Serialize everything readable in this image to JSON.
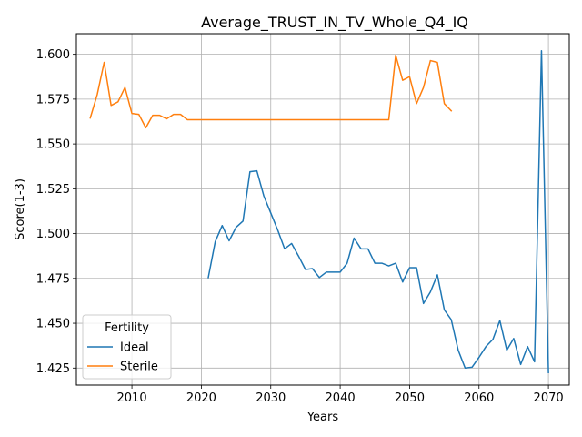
{
  "chart_data": {
    "type": "line",
    "title": "Average_TRUST_IN_TV_Whole_Q4_IQ",
    "xlabel": "Years",
    "ylabel": "Score(1-3)",
    "xlim": [
      2002,
      2073
    ],
    "ylim": [
      1.4155,
      1.6115
    ],
    "xticks": [
      2010,
      2020,
      2030,
      2040,
      2050,
      2060,
      2070
    ],
    "yticks": [
      1.425,
      1.45,
      1.475,
      1.5,
      1.525,
      1.55,
      1.575,
      1.6
    ],
    "ytick_labels": [
      "1.425",
      "1.450",
      "1.475",
      "1.500",
      "1.525",
      "1.550",
      "1.575",
      "1.600"
    ],
    "grid": true,
    "legend": {
      "title": "Fertility",
      "placement": "lower-left"
    },
    "series": [
      {
        "name": "Ideal",
        "color": "#1f77b4",
        "x": [
          2021,
          2022,
          2023,
          2024,
          2025,
          2026,
          2027,
          2028,
          2029,
          2030,
          2031,
          2032,
          2033,
          2034,
          2035,
          2036,
          2037,
          2038,
          2039,
          2040,
          2041,
          2042,
          2043,
          2044,
          2045,
          2046,
          2047,
          2048,
          2049,
          2050,
          2051,
          2052,
          2053,
          2054,
          2055,
          2056,
          2057,
          2058,
          2059,
          2060,
          2061,
          2062,
          2063,
          2064,
          2065,
          2066,
          2067,
          2068,
          2069,
          2070
        ],
        "y": [
          1.4755,
          1.4955,
          1.5045,
          1.496,
          1.5035,
          1.507,
          1.5345,
          1.535,
          1.521,
          1.5115,
          1.502,
          1.4915,
          1.4945,
          1.4875,
          1.48,
          1.4805,
          1.4755,
          1.4785,
          1.4785,
          1.4785,
          1.4835,
          1.4975,
          1.4915,
          1.4915,
          1.4835,
          1.4835,
          1.482,
          1.4835,
          1.473,
          1.481,
          1.481,
          1.461,
          1.4675,
          1.477,
          1.4575,
          1.452,
          1.435,
          1.425,
          1.4255,
          1.431,
          1.437,
          1.441,
          1.4515,
          1.435,
          1.4415,
          1.427,
          1.437,
          1.4285,
          1.602,
          1.4225
        ]
      },
      {
        "name": "Sterile",
        "color": "#ff7f0e",
        "x": [
          2004,
          2005,
          2006,
          2007,
          2008,
          2009,
          2010,
          2011,
          2012,
          2013,
          2014,
          2015,
          2016,
          2017,
          2018,
          2019,
          2020,
          2021,
          2022,
          2023,
          2024,
          2025,
          2026,
          2027,
          2028,
          2029,
          2030,
          2031,
          2032,
          2033,
          2034,
          2035,
          2036,
          2037,
          2038,
          2039,
          2040,
          2041,
          2042,
          2043,
          2044,
          2045,
          2046,
          2047,
          2048,
          2049,
          2050,
          2051,
          2052,
          2053,
          2054,
          2055,
          2056
        ],
        "y": [
          1.5645,
          1.5775,
          1.5955,
          1.5715,
          1.5735,
          1.5815,
          1.567,
          1.5665,
          1.559,
          1.566,
          1.566,
          1.564,
          1.5665,
          1.5665,
          1.5635,
          1.5635,
          1.5635,
          1.5635,
          1.5635,
          1.5635,
          1.5635,
          1.5635,
          1.5635,
          1.5635,
          1.5635,
          1.5635,
          1.5635,
          1.5635,
          1.5635,
          1.5635,
          1.5635,
          1.5635,
          1.5635,
          1.5635,
          1.5635,
          1.5635,
          1.5635,
          1.5635,
          1.5635,
          1.5635,
          1.5635,
          1.5635,
          1.5635,
          1.5635,
          1.5995,
          1.5855,
          1.5875,
          1.5725,
          1.5815,
          1.5965,
          1.5955,
          1.5725,
          1.5685
        ]
      }
    ]
  }
}
